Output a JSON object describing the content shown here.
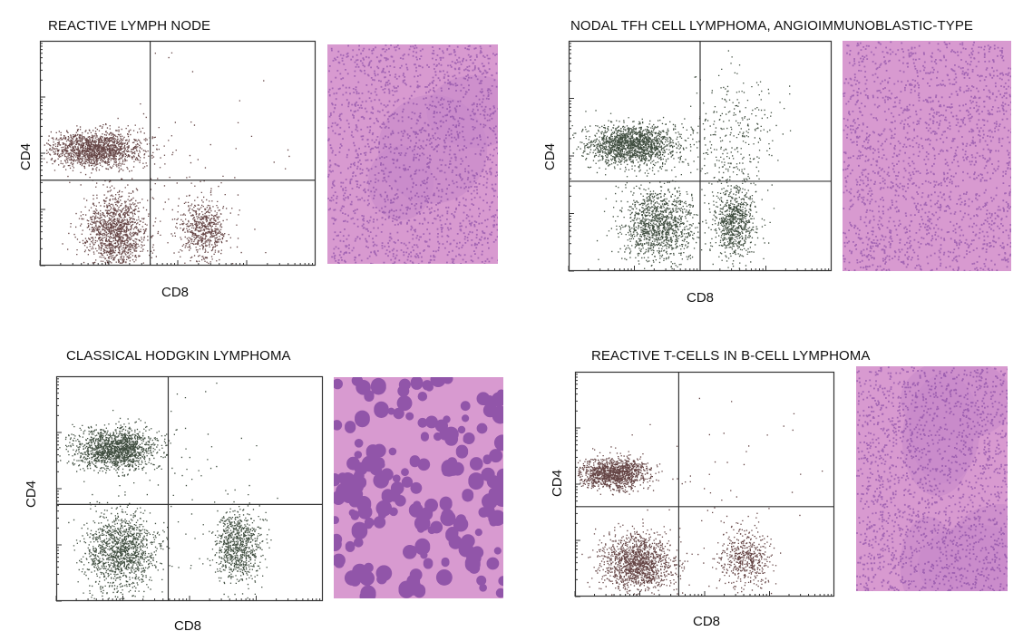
{
  "colors": {
    "dot_brown": "#4a2424",
    "dot_green": "#1d2e1d",
    "histo_pink": "#d89ad0",
    "histo_purple": "#7a3d9c"
  },
  "chart_data": [
    {
      "type": "scatter",
      "title": "REACTIVE LYMPH NODE",
      "xlabel": "CD8",
      "ylabel": "CD4",
      "color": "brown",
      "quadrant_gates": {
        "x": 0.4,
        "y": 0.38
      },
      "populations": [
        {
          "label": "CD4+CD8-",
          "cx": 0.2,
          "cy": 0.52,
          "sx": 0.085,
          "sy": 0.04,
          "n": 1500
        },
        {
          "label": "CD4-CD8-",
          "cx": 0.27,
          "cy": 0.15,
          "sx": 0.055,
          "sy": 0.085,
          "n": 1300
        },
        {
          "label": "CD4-CD8+",
          "cx": 0.59,
          "cy": 0.16,
          "sx": 0.045,
          "sy": 0.07,
          "n": 600
        },
        {
          "label": "scatter",
          "cx": 0.5,
          "cy": 0.4,
          "sx": 0.22,
          "sy": 0.25,
          "n": 90
        }
      ],
      "histology": "reactive-lymph-node-he"
    },
    {
      "type": "scatter",
      "title": "NODAL TFH CELL LYMPHOMA, ANGIOIMMUNOBLASTIC-TYPE",
      "xlabel": "CD8",
      "ylabel": "CD4",
      "color": "green",
      "quadrant_gates": {
        "x": 0.5,
        "y": 0.39
      },
      "populations": [
        {
          "label": "CD4+CD8-",
          "cx": 0.24,
          "cy": 0.55,
          "sx": 0.085,
          "sy": 0.045,
          "n": 1600
        },
        {
          "label": "CD4-CD8-",
          "cx": 0.34,
          "cy": 0.2,
          "sx": 0.07,
          "sy": 0.08,
          "n": 1200
        },
        {
          "label": "CD4-CD8+",
          "cx": 0.63,
          "cy": 0.21,
          "sx": 0.04,
          "sy": 0.075,
          "n": 700
        },
        {
          "label": "smear",
          "cx": 0.62,
          "cy": 0.55,
          "sx": 0.08,
          "sy": 0.16,
          "n": 350
        }
      ],
      "histology": "angioimmunoblastic-lymphoma-he"
    },
    {
      "type": "scatter",
      "title": "CLASSICAL HODGKIN LYMPHOMA",
      "xlabel": "CD8",
      "ylabel": "CD4",
      "color": "green",
      "quadrant_gates": {
        "x": 0.42,
        "y": 0.43
      },
      "populations": [
        {
          "label": "CD4+CD8-",
          "cx": 0.22,
          "cy": 0.68,
          "sx": 0.075,
          "sy": 0.045,
          "n": 1500
        },
        {
          "label": "CD4-CD8-",
          "cx": 0.24,
          "cy": 0.22,
          "sx": 0.065,
          "sy": 0.09,
          "n": 1300
        },
        {
          "label": "CD4-CD8+",
          "cx": 0.68,
          "cy": 0.25,
          "sx": 0.045,
          "sy": 0.08,
          "n": 800
        },
        {
          "label": "scatter",
          "cx": 0.45,
          "cy": 0.55,
          "sx": 0.2,
          "sy": 0.2,
          "n": 70
        }
      ],
      "histology": "hodgkin-reed-sternberg-he"
    },
    {
      "type": "scatter",
      "title": "REACTIVE T-CELLS IN B-CELL LYMPHOMA",
      "xlabel": "CD8",
      "ylabel": "CD4",
      "color": "brown",
      "quadrant_gates": {
        "x": 0.4,
        "y": 0.4
      },
      "populations": [
        {
          "label": "CD4+CD8-",
          "cx": 0.15,
          "cy": 0.55,
          "sx": 0.07,
          "sy": 0.035,
          "n": 1300
        },
        {
          "label": "CD4-CD8-",
          "cx": 0.24,
          "cy": 0.15,
          "sx": 0.07,
          "sy": 0.065,
          "n": 1400
        },
        {
          "label": "CD4-CD8+",
          "cx": 0.65,
          "cy": 0.17,
          "sx": 0.05,
          "sy": 0.065,
          "n": 500
        },
        {
          "label": "scatter",
          "cx": 0.55,
          "cy": 0.45,
          "sx": 0.2,
          "sy": 0.22,
          "n": 60
        }
      ],
      "histology": "follicular-b-cell-lymphoma-he"
    }
  ]
}
